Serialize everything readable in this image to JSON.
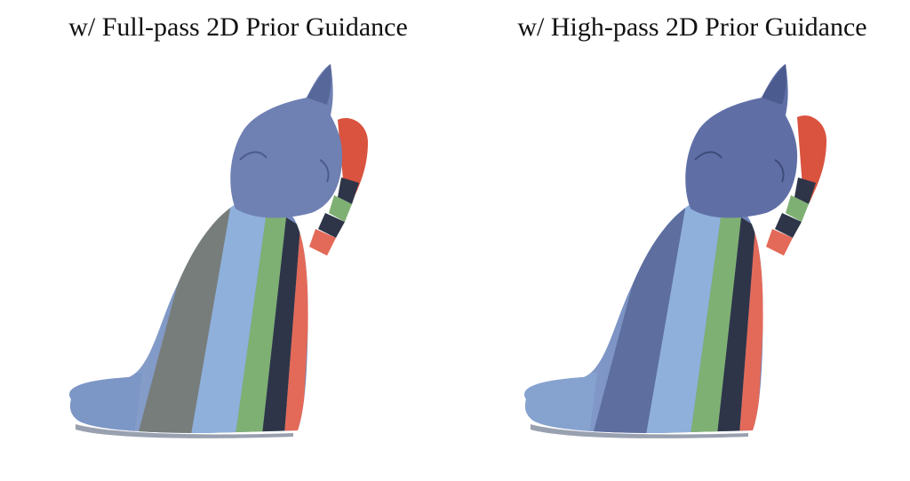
{
  "panels": [
    {
      "caption": "w/ Full-pass 2D Prior Guidance"
    },
    {
      "caption": "w/ High-pass 2D Prior Guidance"
    }
  ],
  "colors": {
    "head_blue": "#6f80b3",
    "body_blue": "#7b95c7",
    "stripe_gray": "#777d7a",
    "stripe_light_blue": "#8fb0db",
    "stripe_green": "#7fb073",
    "stripe_navy": "#2e3548",
    "stripe_red": "#e36a59",
    "ear_red": "#d9533f"
  }
}
